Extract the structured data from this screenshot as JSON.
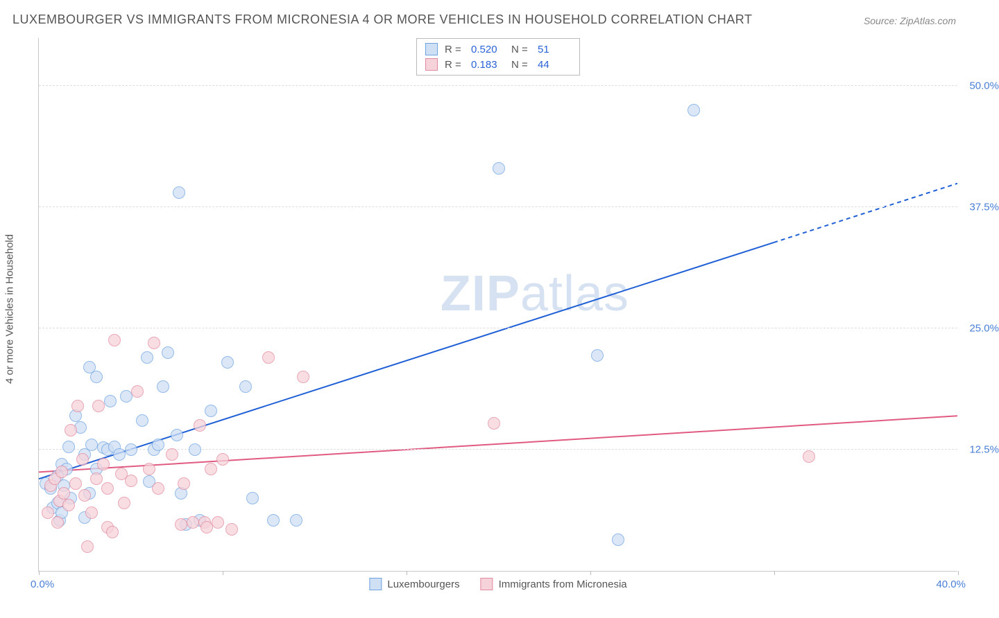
{
  "title": "LUXEMBOURGER VS IMMIGRANTS FROM MICRONESIA 4 OR MORE VEHICLES IN HOUSEHOLD CORRELATION CHART",
  "source_label": "Source: ZipAtlas.com",
  "y_axis_label": "4 or more Vehicles in Household",
  "watermark_bold": "ZIP",
  "watermark_rest": "atlas",
  "chart": {
    "type": "scatter",
    "background_color": "#ffffff",
    "grid_color": "#dddddd",
    "axis_color": "#c8c8c8",
    "xlim": [
      0,
      40
    ],
    "ylim": [
      0,
      55
    ],
    "x_tick_positions": [
      0,
      8,
      16,
      24,
      32,
      40
    ],
    "x_label_min": "0.0%",
    "x_label_max": "40.0%",
    "y_gridlines": [
      12.5,
      25.0,
      37.5,
      50.0
    ],
    "y_tick_labels": [
      "12.5%",
      "25.0%",
      "37.5%",
      "50.0%"
    ],
    "tick_label_color": "#4a7fd6",
    "tick_fontsize": 15,
    "title_fontsize": 18,
    "title_color": "#555555",
    "series": [
      {
        "name": "Luxembourgers",
        "fill": "#cfe0f5",
        "stroke": "#6fa3e0",
        "opacity": 0.75,
        "marker_radius": 9,
        "r_value": "0.520",
        "n_value": "51",
        "trend": {
          "x1": 0,
          "y1": 9.5,
          "x2": 40,
          "y2": 40.0,
          "solid_until_x": 32,
          "color": "#1f5fd6",
          "width": 2
        },
        "points": [
          [
            0.3,
            9.0
          ],
          [
            0.5,
            8.5
          ],
          [
            0.6,
            6.5
          ],
          [
            0.8,
            7.0
          ],
          [
            0.8,
            9.8
          ],
          [
            0.9,
            5.2
          ],
          [
            1.0,
            11.0
          ],
          [
            1.0,
            6.0
          ],
          [
            1.1,
            8.8
          ],
          [
            1.2,
            10.5
          ],
          [
            1.3,
            12.8
          ],
          [
            1.4,
            7.5
          ],
          [
            1.6,
            16.0
          ],
          [
            1.8,
            14.8
          ],
          [
            2.0,
            5.5
          ],
          [
            2.0,
            12.0
          ],
          [
            2.2,
            21.0
          ],
          [
            2.2,
            8.0
          ],
          [
            2.3,
            13.0
          ],
          [
            2.5,
            20.0
          ],
          [
            2.5,
            10.5
          ],
          [
            2.8,
            12.7
          ],
          [
            3.0,
            12.5
          ],
          [
            3.1,
            17.5
          ],
          [
            3.3,
            12.8
          ],
          [
            3.5,
            12.0
          ],
          [
            3.8,
            18.0
          ],
          [
            4.0,
            12.5
          ],
          [
            4.5,
            15.5
          ],
          [
            4.7,
            22.0
          ],
          [
            4.8,
            9.2
          ],
          [
            5.0,
            12.5
          ],
          [
            5.2,
            13.0
          ],
          [
            5.4,
            19.0
          ],
          [
            5.6,
            22.5
          ],
          [
            6.0,
            14.0
          ],
          [
            6.1,
            39.0
          ],
          [
            6.2,
            8.0
          ],
          [
            6.4,
            4.8
          ],
          [
            6.8,
            12.5
          ],
          [
            7.0,
            5.2
          ],
          [
            7.5,
            16.5
          ],
          [
            8.2,
            21.5
          ],
          [
            9.0,
            19.0
          ],
          [
            9.3,
            7.5
          ],
          [
            10.2,
            5.2
          ],
          [
            11.2,
            5.2
          ],
          [
            20.0,
            41.5
          ],
          [
            24.3,
            22.2
          ],
          [
            25.2,
            3.2
          ],
          [
            28.5,
            47.5
          ]
        ]
      },
      {
        "name": "Immigrants from Micronesia",
        "fill": "#f6d3da",
        "stroke": "#e28aa0",
        "opacity": 0.75,
        "marker_radius": 9,
        "r_value": "0.183",
        "n_value": "44",
        "trend": {
          "x1": 0,
          "y1": 10.2,
          "x2": 40,
          "y2": 16.0,
          "solid_until_x": 40,
          "color": "#e05a82",
          "width": 2
        },
        "points": [
          [
            0.4,
            6.0
          ],
          [
            0.5,
            8.8
          ],
          [
            0.7,
            9.5
          ],
          [
            0.8,
            5.0
          ],
          [
            0.9,
            7.2
          ],
          [
            1.0,
            10.2
          ],
          [
            1.1,
            8.0
          ],
          [
            1.3,
            6.8
          ],
          [
            1.4,
            14.5
          ],
          [
            1.6,
            9.0
          ],
          [
            1.7,
            17.0
          ],
          [
            1.9,
            11.5
          ],
          [
            2.0,
            7.8
          ],
          [
            2.1,
            2.5
          ],
          [
            2.3,
            6.0
          ],
          [
            2.5,
            9.5
          ],
          [
            2.6,
            17.0
          ],
          [
            2.8,
            11.0
          ],
          [
            3.0,
            4.5
          ],
          [
            3.0,
            8.5
          ],
          [
            3.2,
            4.0
          ],
          [
            3.3,
            23.8
          ],
          [
            3.6,
            10.0
          ],
          [
            3.7,
            7.0
          ],
          [
            4.0,
            9.3
          ],
          [
            4.3,
            18.5
          ],
          [
            4.8,
            10.5
          ],
          [
            5.0,
            23.5
          ],
          [
            5.2,
            8.5
          ],
          [
            5.8,
            12.0
          ],
          [
            6.2,
            4.8
          ],
          [
            6.3,
            9.0
          ],
          [
            6.7,
            5.0
          ],
          [
            7.0,
            15.0
          ],
          [
            7.2,
            5.0
          ],
          [
            7.3,
            4.5
          ],
          [
            7.5,
            10.5
          ],
          [
            7.8,
            5.0
          ],
          [
            8.0,
            11.5
          ],
          [
            8.4,
            4.3
          ],
          [
            10.0,
            22.0
          ],
          [
            11.5,
            20.0
          ],
          [
            19.8,
            15.2
          ],
          [
            33.5,
            11.8
          ]
        ]
      }
    ],
    "stats_box": {
      "r_label": "R =",
      "n_label": "N ="
    },
    "legend_position": "bottom-center"
  }
}
